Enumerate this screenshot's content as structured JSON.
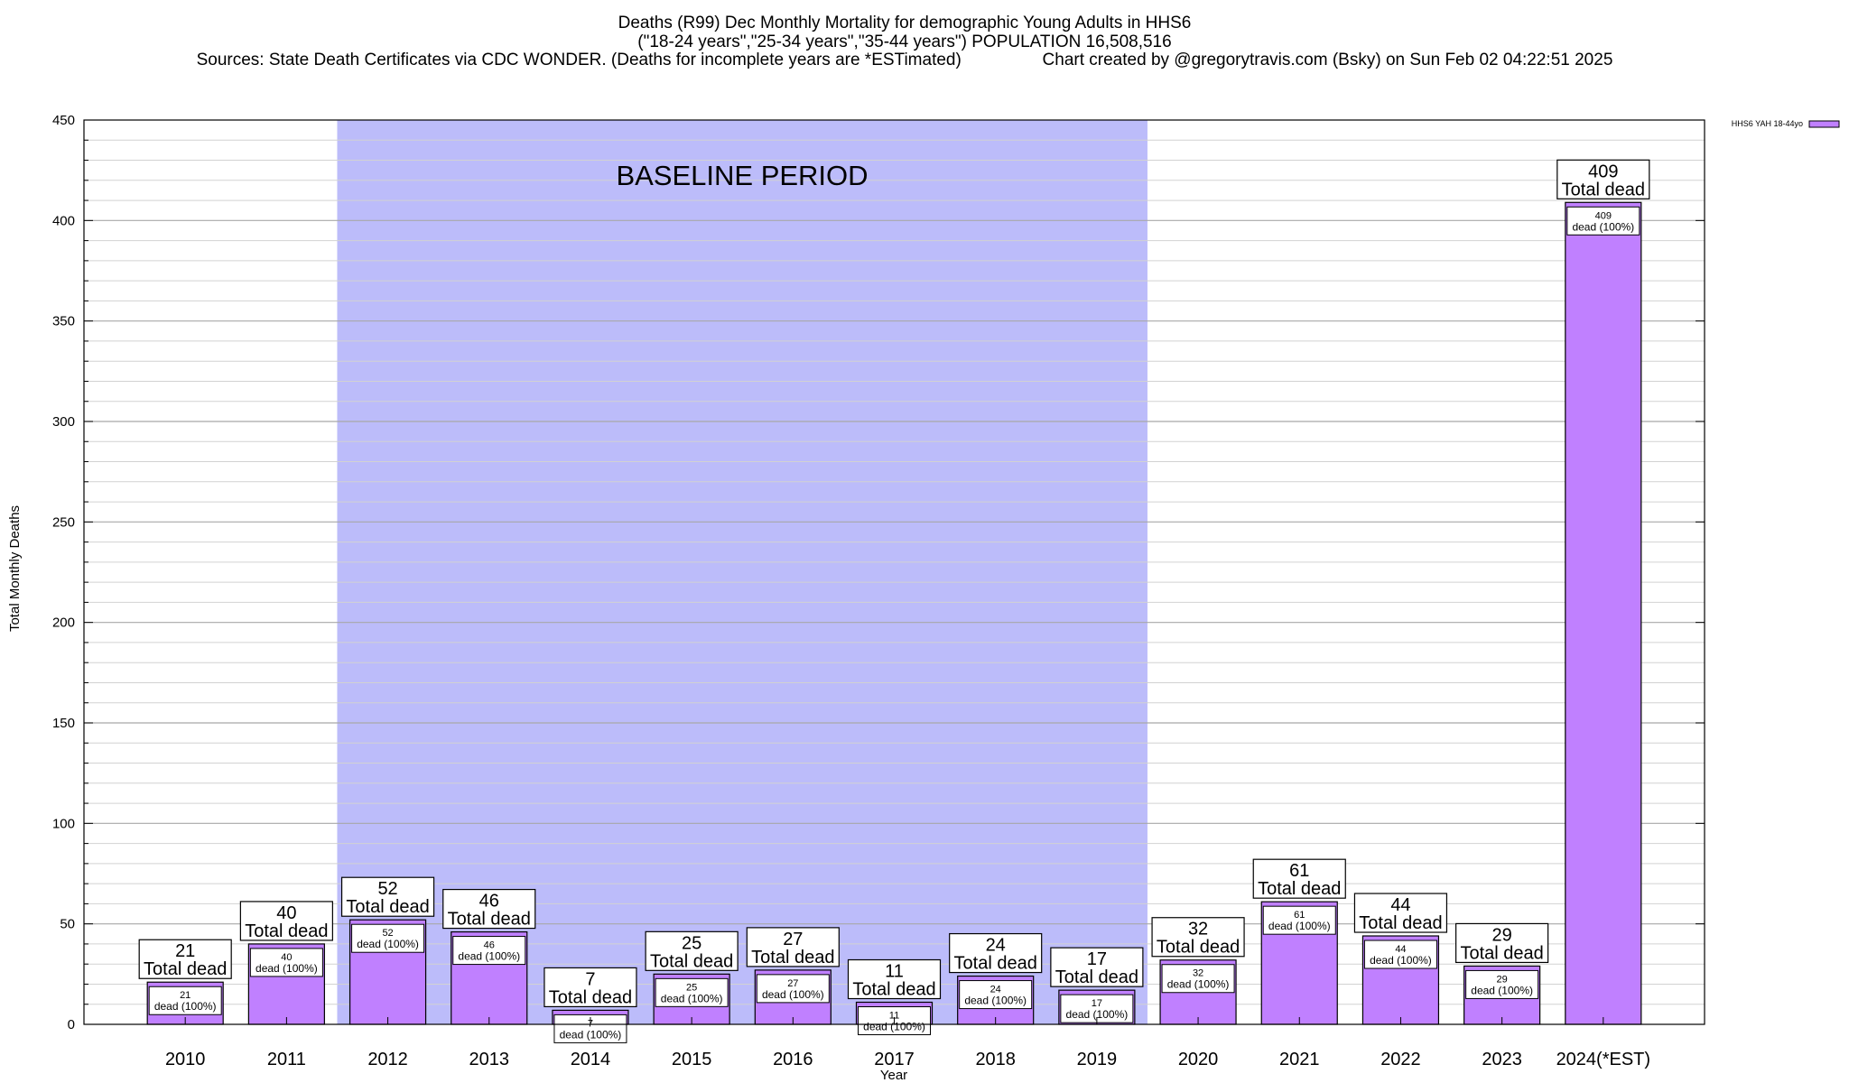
{
  "chart_data": {
    "type": "bar",
    "title": [
      "Deaths (R99) Dec Monthly Mortality for demographic Young Adults in HHS6",
      "(\"18-24 years\",\"25-34 years\",\"35-44 years\") POPULATION 16,508,516",
      "Sources: State Death Certificates via CDC WONDER. (Deaths for incomplete years are *ESTimated)                 Chart created by @gregorytravis.com (Bsky) on Sun Feb 02 04:22:51 2025"
    ],
    "xlabel": "Year",
    "ylabel": "Total Monthly Deaths",
    "ylim": [
      0,
      450
    ],
    "yticks": [
      0,
      50,
      100,
      150,
      200,
      250,
      300,
      350,
      400,
      450
    ],
    "minor_grid_step": 10,
    "grid": true,
    "categories": [
      "2010",
      "2011",
      "2012",
      "2013",
      "2014",
      "2015",
      "2016",
      "2017",
      "2018",
      "2019",
      "2020",
      "2021",
      "2022",
      "2023",
      "2024(*EST)"
    ],
    "series": [
      {
        "name": "HHS6 YAH 18-44yo",
        "color": "#c080ff",
        "values": [
          21,
          40,
          52,
          46,
          7,
          25,
          27,
          11,
          24,
          17,
          32,
          61,
          44,
          29,
          409
        ]
      }
    ],
    "total_label_text": "Total dead",
    "inner_label_text": "dead (100%)",
    "baseline_band": {
      "label": "BASELINE PERIOD",
      "from_category": "2012",
      "to_category": "2019",
      "color": "#bcbcfa"
    },
    "legend": {
      "placement": "top-right",
      "entry": "HHS6 YAH 18-44yo"
    }
  }
}
